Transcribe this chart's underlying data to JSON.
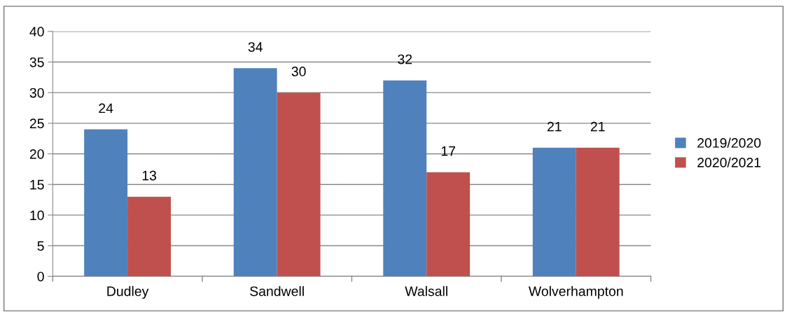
{
  "chart_data": {
    "type": "bar",
    "categories": [
      "Dudley",
      "Sandwell",
      "Walsall",
      "Wolverhampton"
    ],
    "series": [
      {
        "name": "2019/2020",
        "color": "#4f81bd",
        "values": [
          24,
          34,
          32,
          21
        ]
      },
      {
        "name": "2020/2021",
        "color": "#c0504d",
        "values": [
          13,
          30,
          17,
          21
        ]
      }
    ],
    "ylim": [
      0,
      40
    ],
    "yticks": [
      0,
      5,
      10,
      15,
      20,
      25,
      30,
      35,
      40
    ],
    "grid": "y",
    "legend": "right",
    "data_labels": true
  }
}
